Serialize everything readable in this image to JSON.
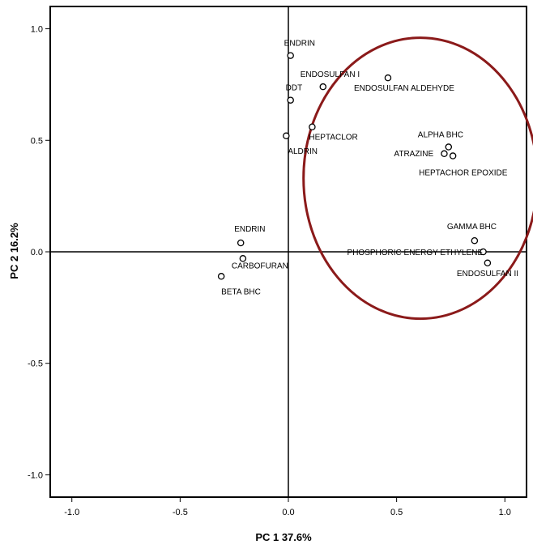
{
  "chart_data": {
    "type": "scatter",
    "title": "",
    "xlabel": "PC 1 37.6%",
    "ylabel": "PC 2 16.2%",
    "xlim": [
      -1.1,
      1.1
    ],
    "ylim": [
      -1.1,
      1.1
    ],
    "x_ticks": [
      -1.0,
      -0.5,
      0.0,
      0.5,
      1.0
    ],
    "x_tick_labels": [
      "-1.0",
      "-0.5",
      "0.0",
      "0.5",
      "1.0"
    ],
    "y_ticks": [
      1.0,
      0.5,
      0.0,
      -0.5,
      -1.0
    ],
    "y_tick_labels": [
      "1.0",
      "0.5",
      "0.0",
      "-0.5",
      "-1.0"
    ],
    "grid": false,
    "reference_lines": {
      "x": 0,
      "y": 0
    },
    "highlight_ellipse": {
      "cx": 0.61,
      "cy": 0.33,
      "rx": 0.54,
      "ry": 0.63,
      "color": "#8b1a1a"
    },
    "points": [
      {
        "label": "ENDRIN",
        "x": 0.01,
        "y": 0.88
      },
      {
        "label": "ENDOSULFAN I",
        "x": 0.16,
        "y": 0.74
      },
      {
        "label": "ENDOSULFAN ALDEHYDE",
        "x": 0.46,
        "y": 0.78
      },
      {
        "label": "DDT",
        "x": 0.01,
        "y": 0.68
      },
      {
        "label": "HEPTACLOR",
        "x": 0.11,
        "y": 0.56
      },
      {
        "label": "ALDRIN",
        "x": -0.01,
        "y": 0.52
      },
      {
        "label": "ALPHA BHC",
        "x": 0.74,
        "y": 0.47
      },
      {
        "label": "ATRAZINE",
        "x": 0.72,
        "y": 0.44
      },
      {
        "label": "HEPTACHOR EPOXIDE",
        "x": 0.76,
        "y": 0.43
      },
      {
        "label": "GAMMA BHC",
        "x": 0.86,
        "y": 0.05
      },
      {
        "label": "PHOSPHORIC ENERGY ETHYLENE",
        "x": 0.9,
        "y": 0.0
      },
      {
        "label": "ENDOSULFAN II",
        "x": 0.92,
        "y": -0.05
      },
      {
        "label": "ENDRIN",
        "x": -0.22,
        "y": 0.04
      },
      {
        "label": "CARBOFURAN",
        "x": -0.21,
        "y": -0.03
      },
      {
        "label": "BETA BHC",
        "x": -0.31,
        "y": -0.11
      }
    ]
  }
}
